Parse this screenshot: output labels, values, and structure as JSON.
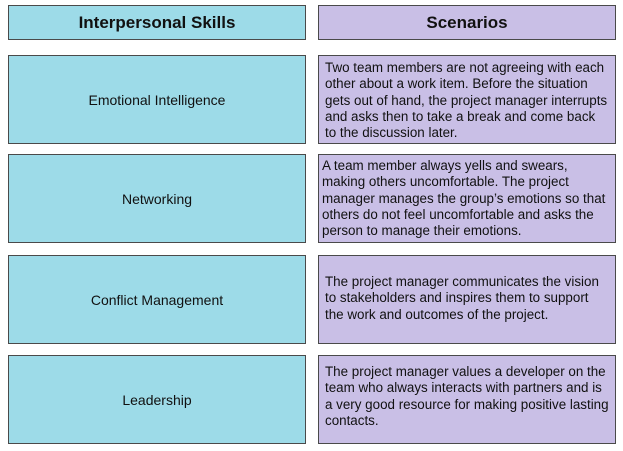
{
  "headers": {
    "skills": "Interpersonal Skills",
    "scenarios": "Scenarios"
  },
  "skills": [
    "Emotional Intelligence",
    "Networking",
    "Conflict Management",
    "Leadership"
  ],
  "scenarios": [
    "Two team members are not agreeing with each other about a work item. Before the situation gets out of hand, the project manager interrupts and asks then to take a break and come back to the discussion later.",
    "A team member always yells and swears, making others uncomfortable. The project manager manages the group’s emotions so that others do not feel uncomfortable and asks the person to manage their emotions.",
    "The project manager communicates the vision to stakeholders and inspires them to support the work and outcomes of the project.",
    "The project manager values a developer on the team who always interacts with partners and is a very good resource for making positive lasting contacts."
  ],
  "colors": {
    "skill_fill": "#9ddbe8",
    "scenario_fill": "#c9bfe6",
    "border": "#4a4a4a"
  }
}
